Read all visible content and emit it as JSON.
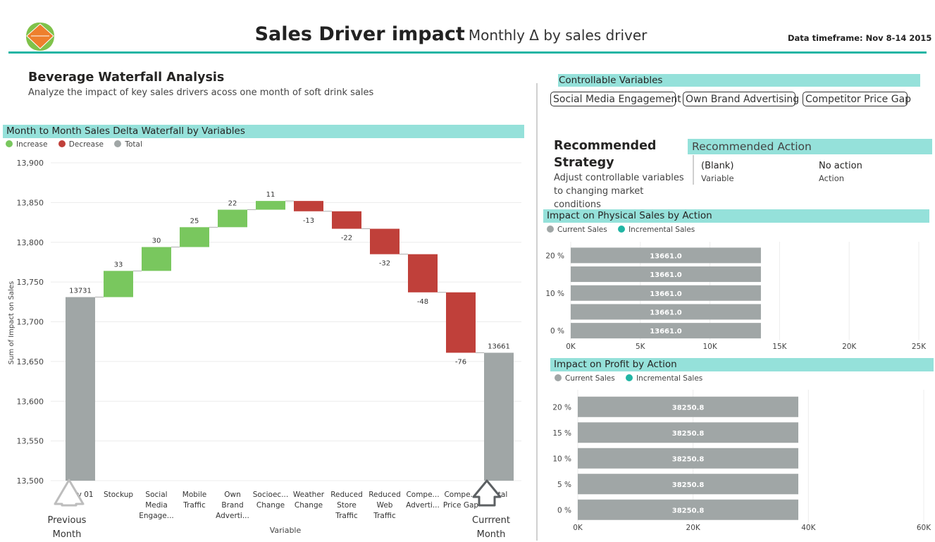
{
  "header": {
    "title": "Sales Driver impact",
    "subtitle": "Monthly Δ by sales driver",
    "timeframe": "Data timeframe: Nov 8-14 2015",
    "logo_icon": "diamond-leaf-logo-icon"
  },
  "intro": {
    "heading": "Beverage Waterfall Analysis",
    "description": "Analyze the impact of key sales drivers acoss one month of soft drink sales"
  },
  "colors": {
    "accent": "#21b5a4",
    "section_bar": "#95e1da",
    "increase": "#79c75e",
    "decrease": "#c0403a",
    "total": "#a0a6a6",
    "bar_gray": "#a0a6a6",
    "incremental": "#21b5a4"
  },
  "waterfall": {
    "section_title": "Month to Month Sales Delta Waterfall by Variables",
    "legend": [
      {
        "label": "Increase",
        "color": "#79c75e"
      },
      {
        "label": "Decrease",
        "color": "#c0403a"
      },
      {
        "label": "Total",
        "color": "#a0a6a6"
      }
    ],
    "previous_label": "Previous Month",
    "current_label": "Currrent Month"
  },
  "controllable": {
    "title": "Controllable Variables",
    "buttons": [
      "Social Media Engagement",
      "Own Brand Advertising",
      "Competitor Price Gap"
    ]
  },
  "strategy": {
    "title": "Recommended Strategy",
    "description": "Adjust controllable variables to changing market conditions"
  },
  "action": {
    "title": "Recommended Action",
    "variable_value": "(Blank)",
    "variable_label": "Variable",
    "action_value": "No action",
    "action_label": "Action"
  },
  "chart_data": [
    {
      "type": "bar",
      "subtype": "waterfall",
      "title": "Month to Month Sales Delta Waterfall by Variables",
      "xlabel": "Variable",
      "ylabel": "Sum of Impact on Sales",
      "ylim": [
        13500,
        13900
      ],
      "yticks": [
        "13,500",
        "13,550",
        "13,600",
        "13,650",
        "13,700",
        "13,750",
        "13,800",
        "13,850",
        "13,900"
      ],
      "yticks_values": [
        13500,
        13550,
        13600,
        13650,
        13700,
        13750,
        13800,
        13850,
        13900
      ],
      "categories": [
        "Nov 01",
        "Stockup",
        "Social Media Engage...",
        "Mobile Traffic",
        "Own Brand Adverti...",
        "Socioec... Change",
        "Weather Change",
        "Reduced Store Traffic",
        "Reduced Web Traffic",
        "Compe... Adverti...",
        "Compe... Price Gap",
        "Total"
      ],
      "category_lines": [
        [
          "Nov 01"
        ],
        [
          "Stockup"
        ],
        [
          "Social",
          "Media",
          "Engage..."
        ],
        [
          "Mobile",
          "Traffic"
        ],
        [
          "Own",
          "Brand",
          "Adverti..."
        ],
        [
          "Socioec...",
          "Change"
        ],
        [
          "Weather",
          "Change"
        ],
        [
          "Reduced",
          "Store",
          "Traffic"
        ],
        [
          "Reduced",
          "Web",
          "Traffic"
        ],
        [
          "Compe...",
          "Adverti..."
        ],
        [
          "Compe...",
          "Price Gap"
        ],
        [
          "Total"
        ]
      ],
      "values": [
        13731,
        33,
        30,
        25,
        22,
        11,
        -13,
        -22,
        -32,
        -48,
        -76,
        13661
      ],
      "value_labels": [
        "13731",
        "33",
        "30",
        "25",
        "22",
        "11",
        "-13",
        "-22",
        "-32",
        "-48",
        "-76",
        "13661"
      ],
      "kinds": [
        "total",
        "increase",
        "increase",
        "increase",
        "increase",
        "increase",
        "decrease",
        "decrease",
        "decrease",
        "decrease",
        "decrease",
        "total"
      ],
      "legend": [
        "Increase",
        "Decrease",
        "Total"
      ],
      "legend_position": "top-left",
      "grid": true
    },
    {
      "type": "bar",
      "orientation": "horizontal",
      "title": "Impact on Physical Sales by Action",
      "legend": [
        "Current Sales",
        "Incremental Sales"
      ],
      "legend_position": "top-left",
      "categories": [
        "20 %",
        "",
        "10 %",
        "",
        "0 %"
      ],
      "series": [
        {
          "name": "Current Sales",
          "values": [
            13661.0,
            13661.0,
            13661.0,
            13661.0,
            13661.0
          ]
        },
        {
          "name": "Incremental Sales",
          "values": [
            0,
            0,
            0,
            0,
            0
          ]
        }
      ],
      "value_labels": [
        "13661.0",
        "13661.0",
        "13661.0",
        "13661.0",
        "13661.0"
      ],
      "xlim": [
        0,
        25000
      ],
      "xticks": [
        "0K",
        "5K",
        "10K",
        "15K",
        "20K",
        "25K"
      ],
      "xticks_values": [
        0,
        5000,
        10000,
        15000,
        20000,
        25000
      ],
      "grid": true
    },
    {
      "type": "bar",
      "orientation": "horizontal",
      "title": "Impact on Profit by Action",
      "legend": [
        "Current Sales",
        "Incremental Sales"
      ],
      "legend_position": "top-left",
      "categories": [
        "20 %",
        "15 %",
        "10 %",
        "5 %",
        "0 %"
      ],
      "series": [
        {
          "name": "Current Sales",
          "values": [
            38250.8,
            38250.8,
            38250.8,
            38250.8,
            38250.8
          ]
        },
        {
          "name": "Incremental Sales",
          "values": [
            0,
            0,
            0,
            0,
            0
          ]
        }
      ],
      "value_labels": [
        "38250.8",
        "38250.8",
        "38250.8",
        "38250.8",
        "38250.8"
      ],
      "xlim": [
        0,
        60000
      ],
      "xticks": [
        "0K",
        "20K",
        "40K",
        "60K"
      ],
      "xticks_values": [
        0,
        20000,
        40000,
        60000
      ],
      "grid": true
    }
  ]
}
